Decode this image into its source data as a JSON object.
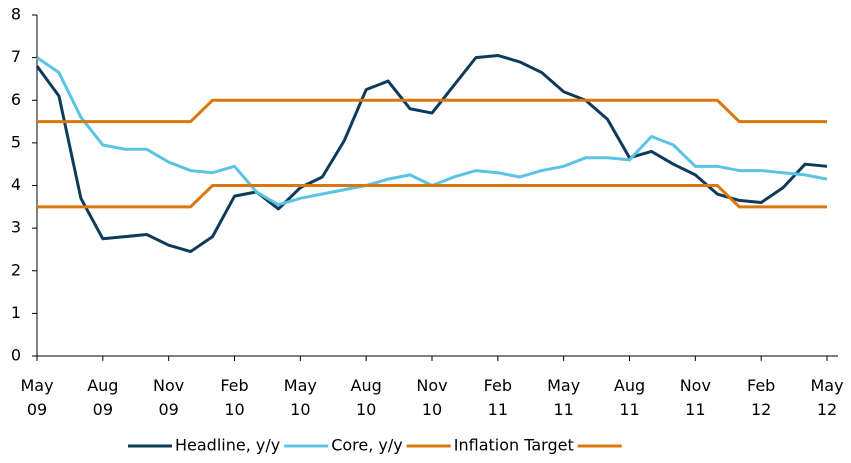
{
  "chart_data": {
    "type": "line",
    "categories": [
      "May 09",
      null,
      null,
      "Aug 09",
      null,
      null,
      "Nov 09",
      null,
      null,
      "Feb 10",
      null,
      null,
      "May 10",
      null,
      null,
      "Aug 10",
      null,
      null,
      "Nov 10",
      null,
      null,
      "Feb 11",
      null,
      null,
      "May 11",
      null,
      null,
      "Aug 11",
      null,
      null,
      "Nov 11",
      null,
      null,
      "Feb 12",
      null,
      null,
      "May 12"
    ],
    "series": [
      {
        "name": "Headline, y/y",
        "color": "#0d3b5c",
        "values": [
          6.8,
          6.1,
          3.7,
          2.75,
          2.8,
          2.85,
          2.6,
          2.45,
          2.8,
          3.75,
          3.85,
          3.45,
          3.95,
          4.2,
          5.05,
          6.25,
          6.45,
          5.8,
          5.7,
          6.35,
          7.0,
          7.05,
          6.9,
          6.65,
          6.2,
          6.0,
          5.55,
          4.65,
          4.8,
          4.5,
          4.25,
          3.8,
          3.65,
          3.6,
          3.95,
          4.5,
          4.45
        ]
      },
      {
        "name": "Core, y/y",
        "color": "#5bc4e5",
        "values": [
          7.0,
          6.65,
          5.6,
          4.95,
          4.85,
          4.85,
          4.55,
          4.35,
          4.3,
          4.45,
          3.85,
          3.55,
          3.7,
          3.8,
          3.9,
          4.0,
          4.15,
          4.25,
          4.0,
          4.2,
          4.35,
          4.3,
          4.2,
          4.35,
          4.45,
          4.65,
          4.65,
          4.6,
          5.15,
          4.95,
          4.45,
          4.45,
          4.35,
          4.35,
          4.3,
          4.25,
          4.15
        ]
      },
      {
        "name": "Inflation Target",
        "color": "#d9780f",
        "values": [
          5.5,
          5.5,
          5.5,
          5.5,
          5.5,
          5.5,
          5.5,
          5.5,
          6,
          6,
          6,
          6,
          6,
          6,
          6,
          6,
          6,
          6,
          6,
          6,
          6,
          6,
          6,
          6,
          6,
          6,
          6,
          6,
          6,
          6,
          6,
          6,
          5.5,
          5.5,
          5.5,
          5.5,
          5.5
        ]
      },
      {
        "color": "#d9780f",
        "values": [
          3.5,
          3.5,
          3.5,
          3.5,
          3.5,
          3.5,
          3.5,
          3.5,
          4,
          4,
          4,
          4,
          4,
          4,
          4,
          4,
          4,
          4,
          4,
          4,
          4,
          4,
          4,
          4,
          4,
          4,
          4,
          4,
          4,
          4,
          4,
          4,
          3.5,
          3.5,
          3.5,
          3.5,
          3.5
        ]
      }
    ],
    "ylim": [
      0,
      8
    ],
    "yticks": [
      0,
      1,
      2,
      3,
      4,
      5,
      6,
      7,
      8
    ],
    "grid": false
  }
}
